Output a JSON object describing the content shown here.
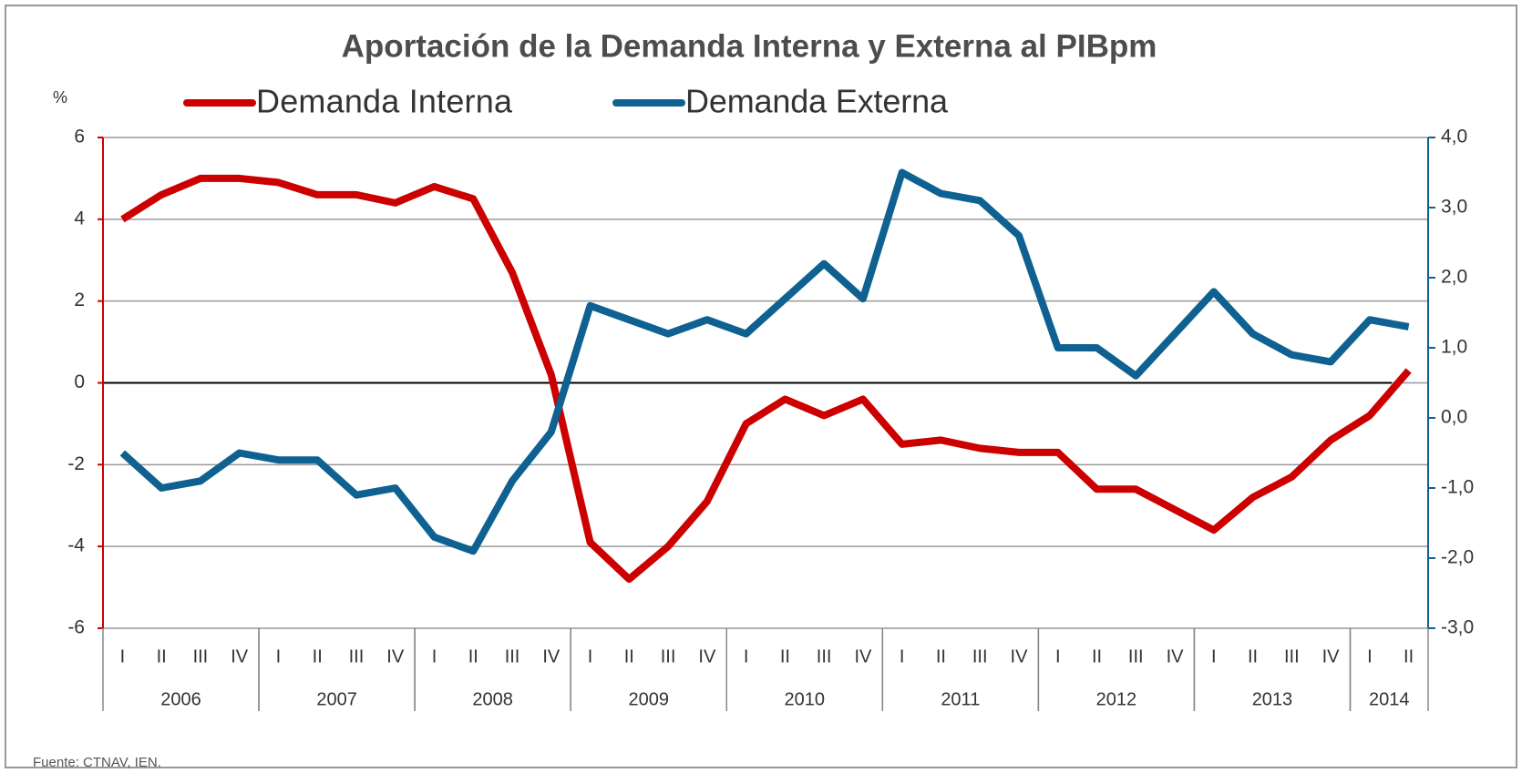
{
  "chart_data": {
    "type": "line",
    "title": "Aportación de la Demanda Interna y Externa al PIBpm",
    "y_label": "%",
    "source": "Fuente: CTNAV, IEN.",
    "categories": [
      "I",
      "II",
      "III",
      "IV",
      "I",
      "II",
      "III",
      "IV",
      "I",
      "II",
      "III",
      "IV",
      "I",
      "II",
      "III",
      "IV",
      "I",
      "II",
      "III",
      "IV",
      "I",
      "II",
      "III",
      "IV",
      "I",
      "II",
      "III",
      "IV",
      "I",
      "II",
      "III",
      "IV",
      "I",
      "II"
    ],
    "years": [
      "2006",
      "2007",
      "2008",
      "2009",
      "2010",
      "2011",
      "2012",
      "2013",
      "2014"
    ],
    "series": [
      {
        "name": "Demanda Interna",
        "color": "#cc0000",
        "axis": "y",
        "values": [
          4.0,
          4.6,
          5.0,
          5.0,
          4.9,
          4.6,
          4.6,
          4.4,
          4.8,
          4.5,
          2.7,
          0.2,
          -3.9,
          -4.8,
          -4.0,
          -2.9,
          -1.0,
          -0.4,
          -0.8,
          -0.4,
          -1.5,
          -1.4,
          -1.6,
          -1.7,
          -1.7,
          -2.6,
          -2.6,
          -3.1,
          -3.6,
          -2.8,
          -2.3,
          -1.4,
          -0.8,
          0.3
        ]
      },
      {
        "name": "Demanda Externa",
        "color": "#0e6190",
        "axis": "y2",
        "values": [
          -0.5,
          -1.0,
          -0.9,
          -0.5,
          -0.6,
          -0.6,
          -1.1,
          -1.0,
          -1.7,
          -1.9,
          -0.9,
          -0.2,
          1.6,
          1.4,
          1.2,
          1.4,
          1.2,
          1.7,
          2.2,
          1.7,
          3.5,
          3.2,
          3.1,
          2.6,
          1.0,
          1.0,
          0.6,
          1.2,
          1.8,
          1.2,
          0.9,
          0.8,
          1.4,
          1.3
        ]
      }
    ],
    "ylim": [
      -6,
      6
    ],
    "yticks": [
      -6,
      -4,
      -2,
      0,
      2,
      4,
      6
    ],
    "y2lim": [
      -3,
      4
    ],
    "y2ticks": [
      {
        "value": -3,
        "label": "-3,0"
      },
      {
        "value": -2,
        "label": "-2,0"
      },
      {
        "value": -1,
        "label": "-1,0"
      },
      {
        "value": 0,
        "label": "0,0"
      },
      {
        "value": 1,
        "label": "1,0"
      },
      {
        "value": 2,
        "label": "2,0"
      },
      {
        "value": 3,
        "label": "3,0"
      },
      {
        "value": 4,
        "label": "4,0"
      }
    ],
    "grid": true
  }
}
